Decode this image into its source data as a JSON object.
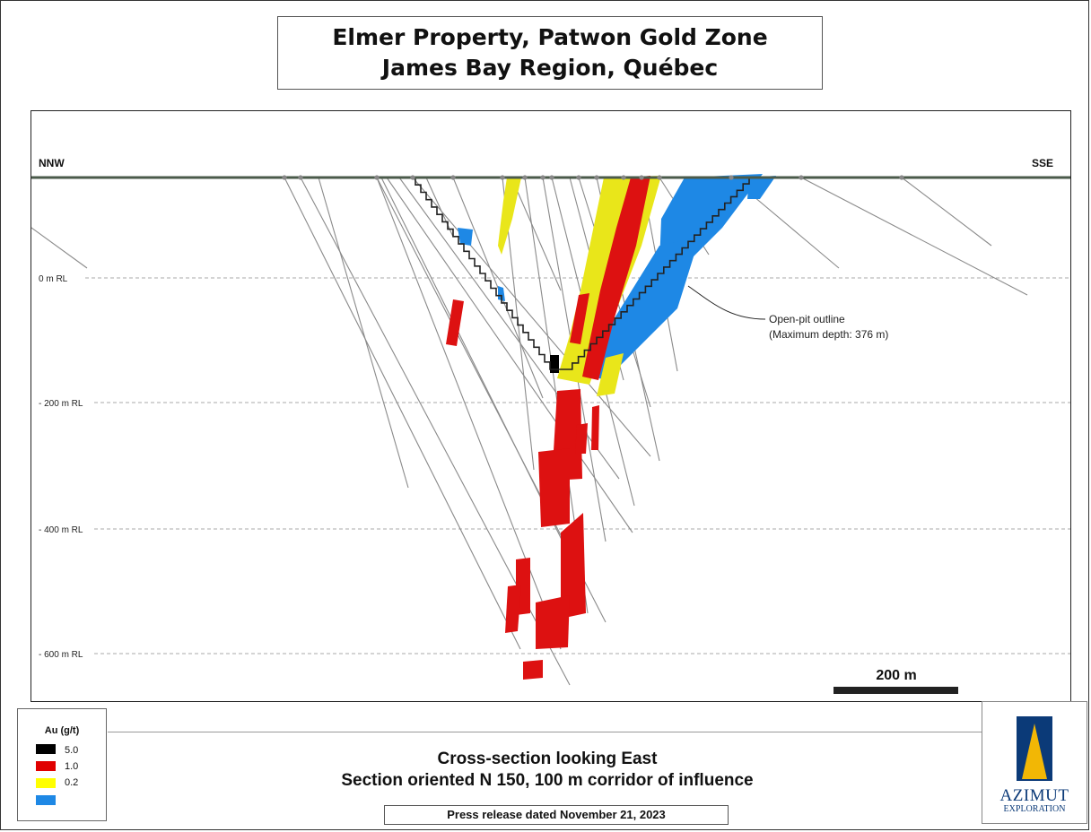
{
  "title": {
    "line1": "Elmer Property, Patwon Gold Zone",
    "line2": "James Bay Region, Québec"
  },
  "section": {
    "left_direction": "NNW",
    "right_direction": "SSE",
    "depth_labels": [
      "0 m RL",
      "- 200 m RL",
      "- 400 m RL",
      "- 600 m RL"
    ],
    "pit_annotation": {
      "line1": "Open-pit outline",
      "line2": "(Maximum depth: 376 m)"
    },
    "scale_bar_label": "200 m"
  },
  "legend": {
    "title": "Au (g/t)",
    "items": [
      {
        "label": "5.0",
        "color": "#000000"
      },
      {
        "label": "1.0",
        "color": "#e00000"
      },
      {
        "label": "0.2",
        "color": "#ffff00"
      },
      {
        "label": "",
        "color": "#1e88e5"
      }
    ]
  },
  "caption": {
    "line1": "Cross-section looking East",
    "line2": "Section oriented N 150, 100 m corridor of influence"
  },
  "press_release": "Press release dated November 21, 2023",
  "logo": {
    "word1": "AZIMUT",
    "word2": "EXPLORATION",
    "colors": {
      "blue": "#0b3a78",
      "gold": "#f2b705"
    }
  }
}
